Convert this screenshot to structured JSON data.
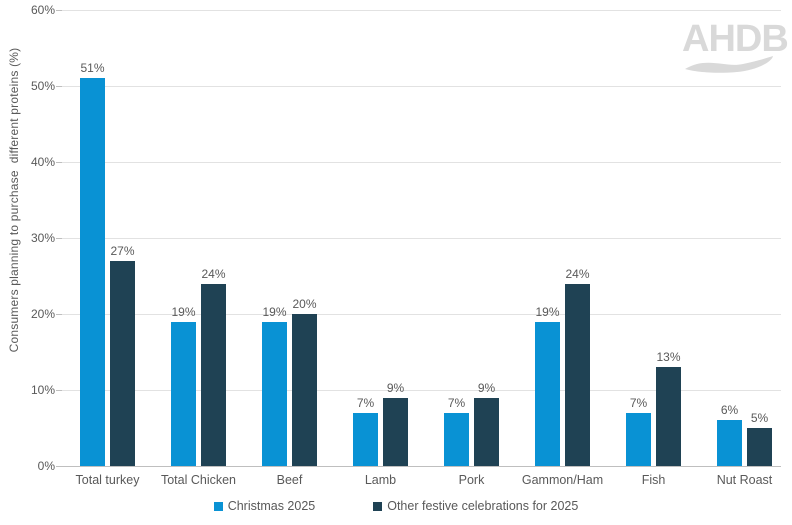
{
  "logo": {
    "text": "AHDB"
  },
  "chart_data": {
    "type": "bar",
    "title": "",
    "xlabel": "",
    "ylabel": "Consumers planning to purchase  different proteins (%)",
    "categories": [
      "Total turkey",
      "Total Chicken",
      "Beef",
      "Lamb",
      "Pork",
      "Gammon/Ham",
      "Fish",
      "Nut Roast"
    ],
    "series": [
      {
        "name": "Christmas 2025",
        "color": "#0992d4",
        "values": [
          51,
          19,
          19,
          7,
          7,
          19,
          7,
          6
        ]
      },
      {
        "name": "Other festive celebrations for 2025",
        "color": "#1f4254",
        "values": [
          27,
          24,
          20,
          9,
          9,
          24,
          13,
          5
        ]
      }
    ],
    "value_label_suffix": "%",
    "ylim": [
      0,
      60
    ],
    "ytick_step": 10,
    "ytick_suffix": "%",
    "grid": true,
    "legend_position": "bottom",
    "colors": {
      "gridline": "#e2e2e2",
      "axis_line": "#bfbfbf",
      "label_text": "#595959",
      "logo_gray": "#d9d9d9"
    }
  }
}
